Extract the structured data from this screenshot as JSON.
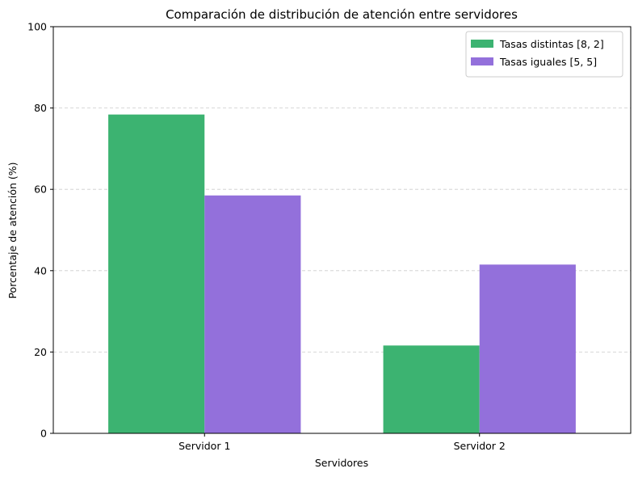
{
  "chart_data": {
    "type": "bar",
    "title": "Comparación de distribución de atención entre servidores",
    "xlabel": "Servidores",
    "ylabel": "Porcentaje de atención (%)",
    "categories": [
      "Servidor 1",
      "Servidor 2"
    ],
    "series": [
      {
        "name": "Tasas distintas [8, 2]",
        "values": [
          78.4,
          21.6
        ],
        "color": "#3cb371"
      },
      {
        "name": "Tasas iguales [5, 5]",
        "values": [
          58.5,
          41.5
        ],
        "color": "#9370db"
      }
    ],
    "ylim": [
      0,
      100
    ],
    "yticks": [
      0,
      20,
      40,
      60,
      80,
      100
    ],
    "grid": "y dashed",
    "legend_position": "top-right"
  }
}
